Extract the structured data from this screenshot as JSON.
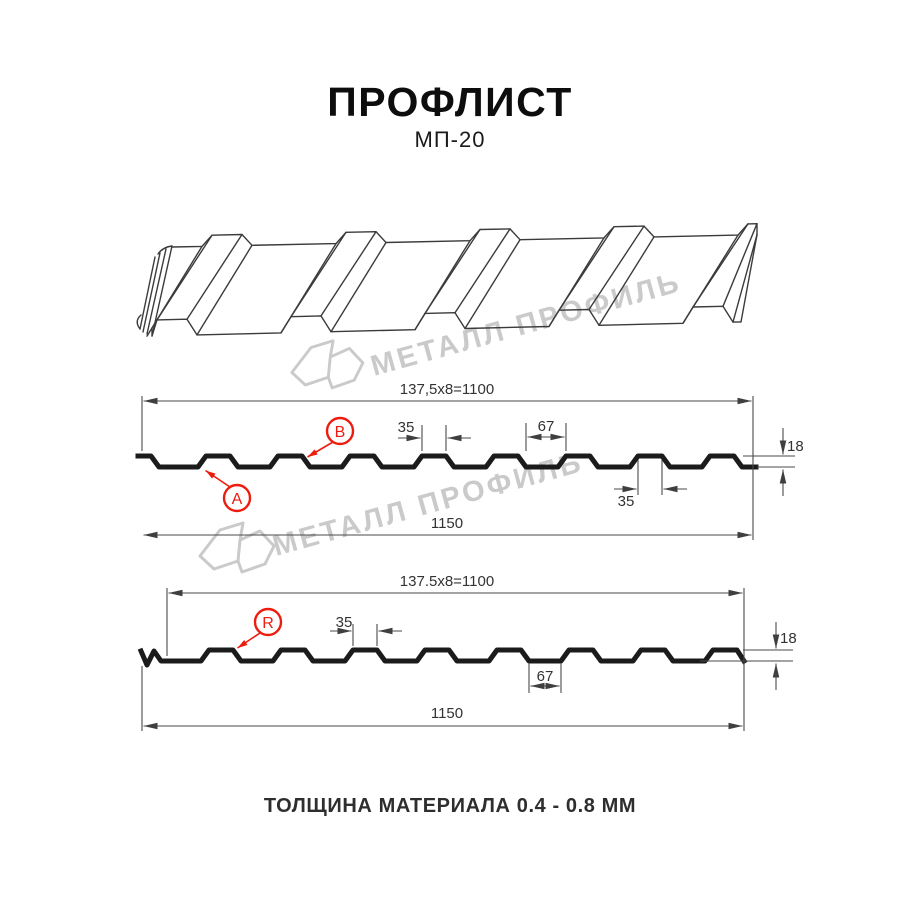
{
  "header": {
    "title": "ПРОФЛИСТ",
    "subtitle": "МП-20"
  },
  "watermark": {
    "brand_text": "МЕТАЛЛ ПРОФИЛЬ",
    "color": "#cacaca"
  },
  "diagram_top": {
    "dim_module": "137,5x8=1100",
    "dim_overall": "1150",
    "dim_crest": "35",
    "dim_gap": "67",
    "dim_height": "18",
    "dim_crest_bottom": "35",
    "label_a": "A",
    "label_b": "B"
  },
  "diagram_bottom": {
    "dim_module": "137.5x8=1100",
    "dim_overall": "1150",
    "dim_crest": "35",
    "dim_valley": "67",
    "dim_height": "18",
    "label_r": "R"
  },
  "footer": {
    "caption": "ТОЛЩИНА МАТЕРИАЛА 0.4 - 0.8 ММ"
  },
  "colors": {
    "accent_red": "#ee1c0f",
    "profile_line": "#1b1b1b",
    "dim_line": "#4a4a4a",
    "watermark_gray": "#cacaca"
  }
}
